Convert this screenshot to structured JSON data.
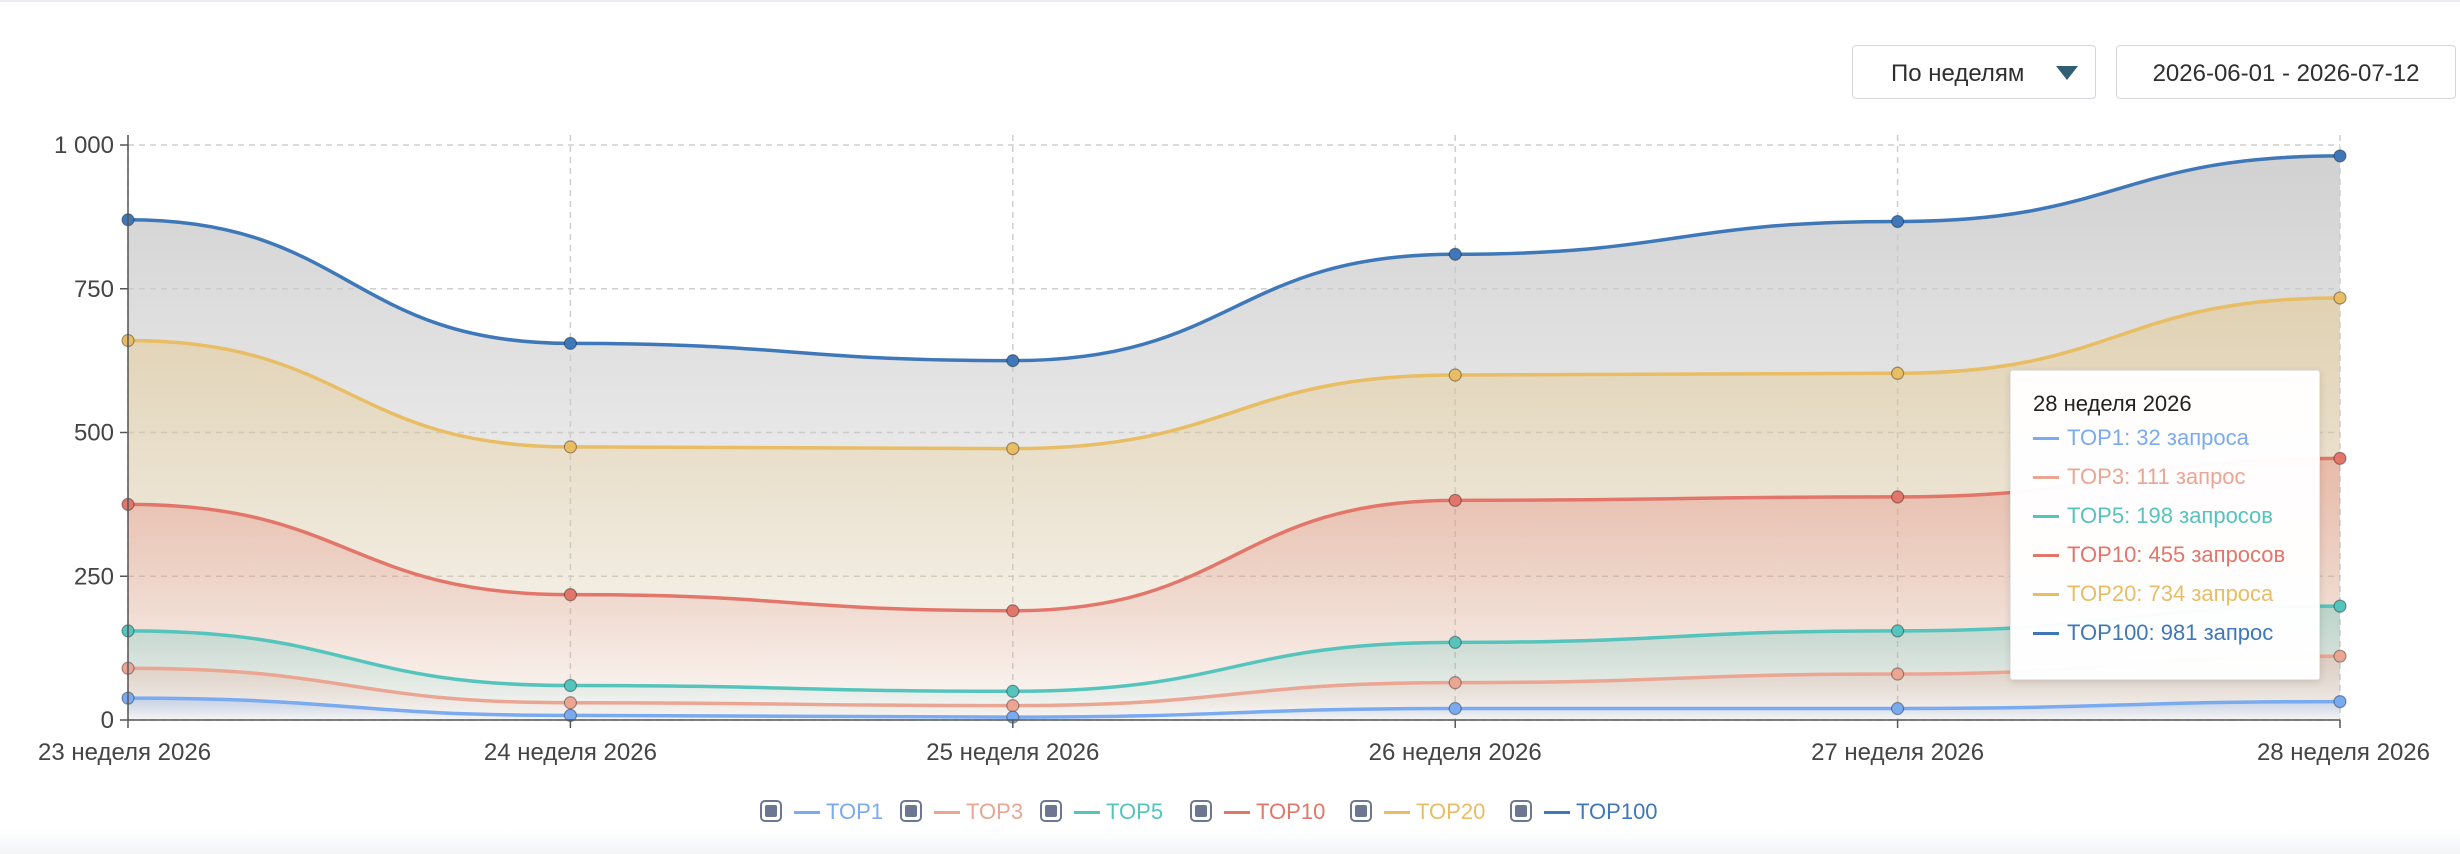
{
  "controls": {
    "period_label": "По неделям",
    "date_range": "2026-06-01 - 2026-07-12"
  },
  "colors": {
    "TOP1": "#7aaaf0",
    "TOP3": "#eaa693",
    "TOP5": "#55c4bd",
    "TOP10": "#e3766a",
    "TOP20": "#e8bd64",
    "TOP100": "#3f78b8",
    "area_top": "#c9c9c9"
  },
  "chart_data": {
    "type": "area",
    "categories": [
      "23 неделя 2026",
      "24 неделя 2026",
      "25 неделя 2026",
      "26 неделя 2026",
      "27 неделя 2026",
      "28 неделя 2026"
    ],
    "y_ticks": [
      "0",
      "250",
      "500",
      "750",
      "1 000"
    ],
    "ylim": [
      0,
      1000
    ],
    "grid": true,
    "legend_position": "bottom-center",
    "series": [
      {
        "name": "TOP1",
        "values": [
          38,
          8,
          5,
          20,
          20,
          32
        ]
      },
      {
        "name": "TOP3",
        "values": [
          90,
          30,
          25,
          65,
          80,
          111
        ]
      },
      {
        "name": "TOP5",
        "values": [
          155,
          60,
          50,
          135,
          155,
          198
        ]
      },
      {
        "name": "TOP10",
        "values": [
          375,
          218,
          190,
          382,
          388,
          455
        ]
      },
      {
        "name": "TOP20",
        "values": [
          660,
          475,
          472,
          600,
          603,
          734
        ]
      },
      {
        "name": "TOP100",
        "values": [
          870,
          655,
          625,
          810,
          867,
          981
        ]
      }
    ]
  },
  "tooltip": {
    "title": "28 неделя 2026",
    "rows": [
      {
        "key": "TOP1",
        "text": "TOP1: 32 запроса"
      },
      {
        "key": "TOP3",
        "text": "TOP3: 111 запрос"
      },
      {
        "key": "TOP5",
        "text": "TOP5: 198 запросов"
      },
      {
        "key": "TOP10",
        "text": "TOP10: 455 запросов"
      },
      {
        "key": "TOP20",
        "text": "TOP20: 734 запроса"
      },
      {
        "key": "TOP100",
        "text": "TOP100: 981 запрос"
      }
    ]
  },
  "legend": [
    "TOP1",
    "TOP3",
    "TOP5",
    "TOP10",
    "TOP20",
    "TOP100"
  ]
}
